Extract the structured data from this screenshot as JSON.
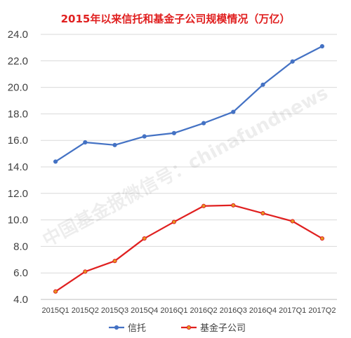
{
  "chart_data": {
    "type": "line",
    "title": "2015年以来信托和基金子公司规模情况（万亿）",
    "categories": [
      "2015Q1",
      "2015Q2",
      "2015Q3",
      "2015Q4",
      "2016Q1",
      "2016Q2",
      "2016Q3",
      "2016Q4",
      "2017Q1",
      "2017Q2"
    ],
    "series": [
      {
        "name": "信托",
        "color": "#4472C4",
        "values": [
          14.4,
          15.85,
          15.65,
          16.3,
          16.55,
          17.3,
          18.15,
          20.2,
          21.95,
          23.1
        ]
      },
      {
        "name": "基金子公司",
        "color": "#E02020",
        "values": [
          4.6,
          6.1,
          6.9,
          8.6,
          9.85,
          11.05,
          11.1,
          10.5,
          9.9,
          8.6
        ]
      }
    ],
    "ylim": [
      4.0,
      24.0
    ],
    "yticks": [
      "4.0",
      "6.0",
      "8.0",
      "10.0",
      "12.0",
      "14.0",
      "16.0",
      "18.0",
      "20.0",
      "22.0",
      "24.0"
    ],
    "grid": true,
    "legend_position": "bottom",
    "watermark": "中国基金报微信号：chinafundnews",
    "title_color": "#E02020"
  }
}
